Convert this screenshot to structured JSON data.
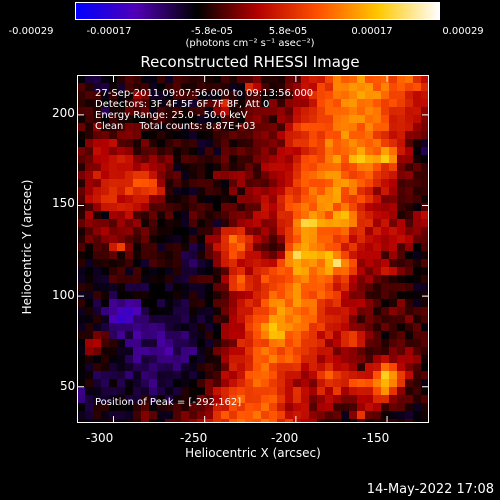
{
  "colorbar": {
    "ticks": [
      "-0.00029",
      "-0.00017",
      "-5.8e-05",
      "5.8e-05",
      "0.00017",
      "0.00029"
    ],
    "tick_values": [
      -0.00029,
      -0.00017,
      -5.8e-05,
      5.8e-05,
      0.00017,
      0.00029
    ],
    "range": [
      -0.00029,
      0.00029
    ],
    "units": "(photons cm⁻² s⁻¹ asec⁻²)",
    "colors": [
      "#0000ff",
      "#5000b4",
      "#000000",
      "#b40000",
      "#ff5000",
      "#ffc800",
      "#ffffff"
    ]
  },
  "chart_data": {
    "type": "heatmap",
    "title": "Reconstructed RHESSI Image",
    "xlabel": "Heliocentric X (arcsec)",
    "ylabel": "Heliocentric Y (arcsec)",
    "xlim": [
      -320,
      -127
    ],
    "ylim": [
      30,
      222
    ],
    "x_ticks": [
      -300,
      -250,
      -200,
      -150
    ],
    "y_ticks": [
      50,
      100,
      150,
      200
    ],
    "annotations": [
      "27-Sep-2011 09:07:56.000 to 09:13:56.000",
      "Detectors: 3F 4F 5F 6F 7F 8F, Att 0",
      "Energy Range: 25.0 - 50.0 keV",
      "Clean     Total counts: 8.87E+03"
    ],
    "peak_label": "Position of Peak = [-292,162]",
    "peak_position": [
      -292,
      162
    ]
  },
  "timestamp": "14-May-2022 17:08"
}
